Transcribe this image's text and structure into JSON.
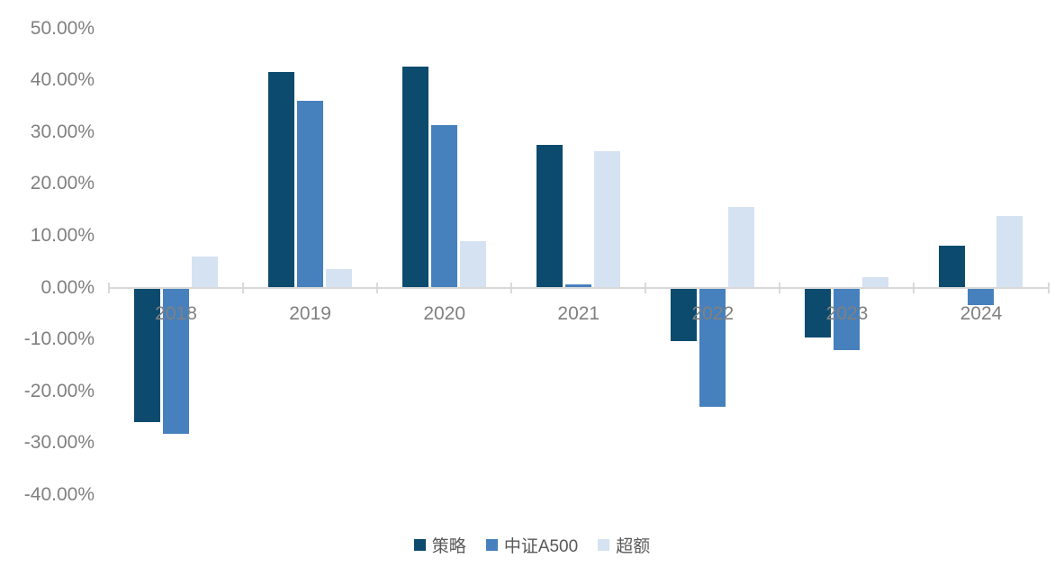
{
  "chart_data": {
    "type": "bar",
    "title": "",
    "xlabel": "",
    "ylabel": "",
    "categories": [
      "2018",
      "2019",
      "2020",
      "2021",
      "2022",
      "2023",
      "2024"
    ],
    "series": [
      {
        "name": "策略",
        "color": "#0c4b6e",
        "values": [
          -25.9,
          41.5,
          42.7,
          27.5,
          -10.4,
          -9.6,
          8.0
        ]
      },
      {
        "name": "中证A500",
        "color": "#4680bd",
        "values": [
          -28.2,
          36.1,
          31.3,
          0.6,
          -23.0,
          -12.0,
          -3.3
        ]
      },
      {
        "name": "超额",
        "color": "#d5e2f1",
        "values": [
          6.0,
          3.5,
          9.0,
          26.3,
          15.5,
          2.0,
          13.8
        ]
      }
    ],
    "ylim": [
      -40,
      50
    ],
    "y_ticks": [
      {
        "value": 50,
        "label": "50.00%"
      },
      {
        "value": 40,
        "label": "40.00%"
      },
      {
        "value": 30,
        "label": "30.00%"
      },
      {
        "value": 20,
        "label": "20.00%"
      },
      {
        "value": 10,
        "label": "10.00%"
      },
      {
        "value": 0,
        "label": "0.00%"
      },
      {
        "value": -10,
        "label": "-10.00%"
      },
      {
        "value": -20,
        "label": "-20.00%"
      },
      {
        "value": -30,
        "label": "-30.00%"
      },
      {
        "value": -40,
        "label": "-40.00%"
      }
    ],
    "grid": false,
    "legend_position": "bottom",
    "colors": {
      "axis_line": "#d9d9d9",
      "axis_label_text": "#808080",
      "legend_text": "#595959",
      "background": "#ffffff"
    }
  }
}
